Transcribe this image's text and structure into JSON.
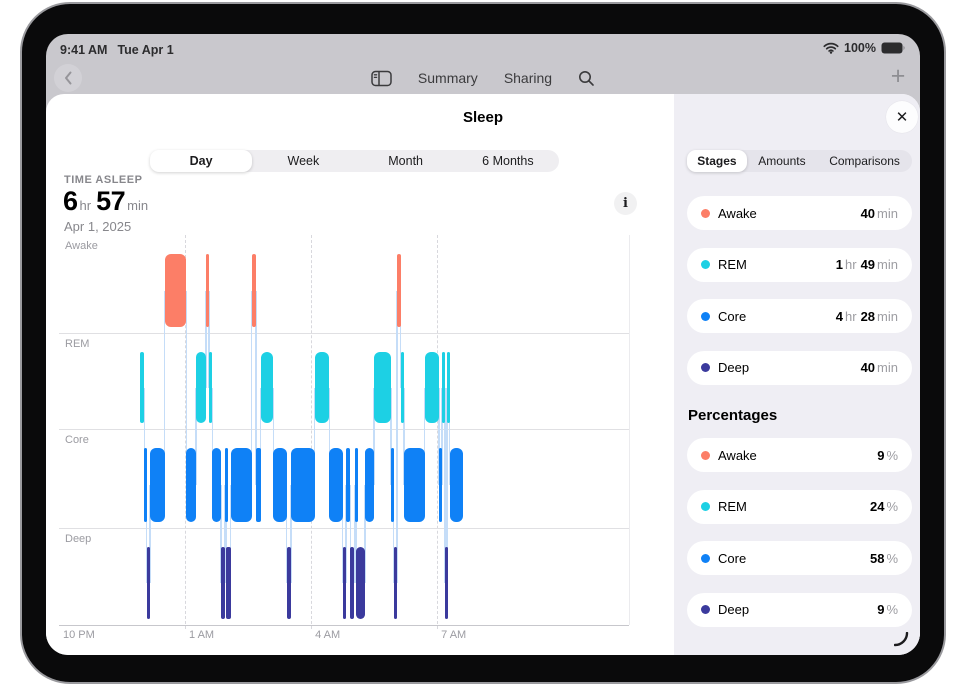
{
  "status_bar": {
    "time": "9:41 AM",
    "date": "Tue Apr 1",
    "battery_percent": "100%"
  },
  "navbar": {
    "summary_label": "Summary",
    "sharing_label": "Sharing",
    "add_label": "+"
  },
  "sheet": {
    "title": "Sleep",
    "close_label": "✕",
    "range_tabs": [
      {
        "label": "Day",
        "selected": true
      },
      {
        "label": "Week",
        "selected": false
      },
      {
        "label": "Month",
        "selected": false
      },
      {
        "label": "6 Months",
        "selected": false
      }
    ],
    "metric": {
      "label": "TIME ASLEEP",
      "hours": "6",
      "hours_unit": "hr",
      "minutes": "57",
      "minutes_unit": "min",
      "date": "Apr 1, 2025"
    },
    "info_label": "i"
  },
  "sidebar": {
    "tabs": [
      {
        "label": "Stages",
        "selected": true,
        "flex": "f-s"
      },
      {
        "label": "Amounts",
        "selected": false,
        "flex": ""
      },
      {
        "label": "Comparisons",
        "selected": false,
        "flex": "f-c"
      }
    ],
    "durations": [
      {
        "stage": "Awake",
        "color": "#fc7e67",
        "value_parts": [
          [
            "40",
            "n"
          ],
          [
            "min",
            "u"
          ]
        ]
      },
      {
        "stage": "REM",
        "color": "#1dd0e4",
        "value_parts": [
          [
            "1",
            "n"
          ],
          [
            "hr",
            "u"
          ],
          [
            "49",
            "n"
          ],
          [
            "min",
            "u"
          ]
        ]
      },
      {
        "stage": "Core",
        "color": "#0f81f6",
        "value_parts": [
          [
            "4",
            "n"
          ],
          [
            "hr",
            "u"
          ],
          [
            "28",
            "n"
          ],
          [
            "min",
            "u"
          ]
        ]
      },
      {
        "stage": "Deep",
        "color": "#3b3a9d",
        "value_parts": [
          [
            "40",
            "n"
          ],
          [
            "min",
            "u"
          ]
        ]
      }
    ],
    "percent_heading": "Percentages",
    "percentages": [
      {
        "stage": "Awake",
        "color": "#fc7e67",
        "value_parts": [
          [
            "9",
            "n"
          ],
          [
            "%",
            "u"
          ]
        ]
      },
      {
        "stage": "REM",
        "color": "#1dd0e4",
        "value_parts": [
          [
            "24",
            "n"
          ],
          [
            "%",
            "u"
          ]
        ]
      },
      {
        "stage": "Core",
        "color": "#0f81f6",
        "value_parts": [
          [
            "58",
            "n"
          ],
          [
            "%",
            "u"
          ]
        ]
      },
      {
        "stage": "Deep",
        "color": "#3b3a9d",
        "value_parts": [
          [
            "9",
            "n"
          ],
          [
            "%",
            "u"
          ]
        ]
      }
    ]
  },
  "chart_data": {
    "type": "timeline",
    "subtype": "sleep-stage-hypnogram",
    "title": "Sleep stages — Apr 1, 2025",
    "time_asleep": "6 hr 57 min",
    "rows": [
      "Awake",
      "REM",
      "Core",
      "Deep"
    ],
    "stage_colors": {
      "Awake": "#fc7e67",
      "REM": "#1dd0e4",
      "Core": "#0f81f6",
      "Deep": "#3b3a9d"
    },
    "connector_color": "#c5ddf8",
    "x_axis": {
      "start": "10 PM",
      "ticks": [
        "10 PM",
        "1 AM",
        "4 AM",
        "7 AM"
      ],
      "tick_minutes": [
        0,
        180,
        360,
        540
      ],
      "span_minutes": 814
    },
    "sequence": [
      [
        "REM",
        116,
        122
      ],
      [
        "Core",
        122,
        125
      ],
      [
        "Deep",
        125,
        130
      ],
      [
        "Core",
        130,
        151
      ],
      [
        "Awake",
        151,
        182
      ],
      [
        "Core",
        182,
        196
      ],
      [
        "REM",
        196,
        210
      ],
      [
        "Awake",
        210,
        214
      ],
      [
        "REM",
        214,
        219
      ],
      [
        "Core",
        219,
        231
      ],
      [
        "Deep",
        231,
        237
      ],
      [
        "Core",
        237,
        239
      ],
      [
        "Deep",
        239,
        245
      ],
      [
        "Core",
        245,
        275
      ],
      [
        "Awake",
        275,
        281
      ],
      [
        "Core",
        281,
        288
      ],
      [
        "REM",
        288,
        306
      ],
      [
        "Core",
        306,
        325
      ],
      [
        "Deep",
        325,
        331
      ],
      [
        "Core",
        331,
        365
      ],
      [
        "REM",
        365,
        386
      ],
      [
        "Core",
        386,
        405
      ],
      [
        "Deep",
        405,
        410
      ],
      [
        "Core",
        410,
        416
      ],
      [
        "Deep",
        416,
        422
      ],
      [
        "Core",
        422,
        424
      ],
      [
        "Deep",
        424,
        437
      ],
      [
        "Core",
        437,
        450
      ],
      [
        "REM",
        450,
        474
      ],
      [
        "Core",
        474,
        478
      ],
      [
        "Deep",
        478,
        483
      ],
      [
        "Awake",
        483,
        488
      ],
      [
        "REM",
        488,
        493
      ],
      [
        "Core",
        493,
        522
      ],
      [
        "REM",
        522,
        543
      ],
      [
        "Core",
        543,
        547
      ],
      [
        "REM",
        547,
        551
      ],
      [
        "Deep",
        551,
        554
      ],
      [
        "REM",
        554,
        558
      ],
      [
        "Core",
        558,
        577
      ]
    ],
    "totals": {
      "Awake": "40 min",
      "REM": "1 hr 49 min",
      "Core": "4 hr 28 min",
      "Deep": "40 min"
    },
    "percentages": {
      "Awake": 9,
      "REM": 24,
      "Core": 58,
      "Deep": 9
    }
  },
  "theme": {
    "screen_dimmed_bg": "#c9c8cd",
    "sheet_bg": "#ffffff",
    "sidebar_bg": "#efeef4",
    "segmented_bg": "#efeef1",
    "row_separator": "#e0e0e3",
    "axis_line": "#c7c7cc"
  }
}
